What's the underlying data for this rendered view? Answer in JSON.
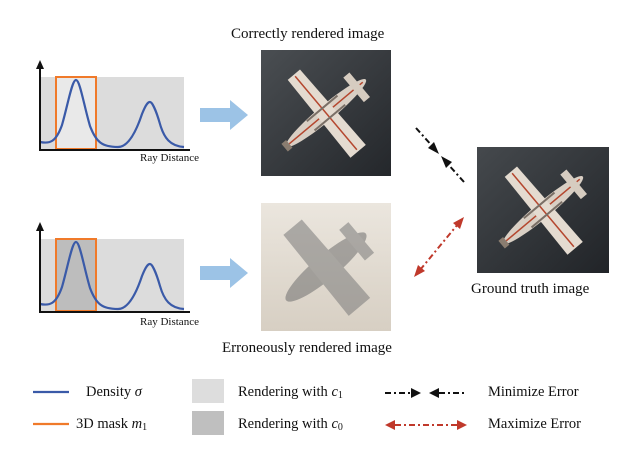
{
  "titles": {
    "correct": "Correctly rendered image",
    "erroneous": "Erroneously rendered image",
    "ground_truth": "Ground truth image"
  },
  "plots": {
    "top_xlabel": "Ray Distance",
    "bottom_xlabel": "Ray Distance"
  },
  "legend": {
    "density": {
      "label": "Density",
      "symbol": "σ",
      "color": "#3a5aa8"
    },
    "mask": {
      "label": "3D mask",
      "symbol": "m",
      "subscript": "1",
      "color": "#f07a2a"
    },
    "render_c1": {
      "label": "Rendering with",
      "symbol": "c",
      "subscript": "1",
      "color": "#dddddd"
    },
    "render_c0": {
      "label": "Rendering with",
      "symbol": "c",
      "subscript": "0",
      "color": "#bfbfbf"
    },
    "minimize": {
      "label": "Minimize Error",
      "color": "#111111"
    },
    "maximize": {
      "label": "Maximize Error",
      "color": "#c0392b"
    }
  },
  "icons": {
    "arrow": "right-arrow-icon",
    "correct_image": "airplane-photo-icon",
    "erroneous_image": "blurry-airplane-photo-icon",
    "ground_truth_image": "airplane-photo-icon"
  },
  "colors": {
    "flow_arrow": "#9cc3e6",
    "photo_bg": "#2f3338"
  }
}
